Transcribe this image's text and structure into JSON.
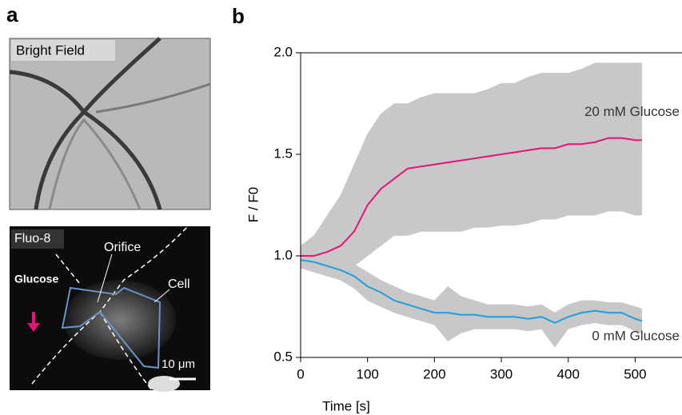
{
  "panel_a": {
    "label": "a",
    "bright_field_label": "Bright Field",
    "fluo_label": "Fluo-8",
    "orifice_label": "Orifice",
    "glucose_label": "Glucose",
    "cell_label": "Cell",
    "scale_label": "10 μm"
  },
  "chart_data": {
    "type": "line",
    "panel_label": "b",
    "xlabel": "Time [s]",
    "ylabel": "F / F0",
    "x": [
      0,
      20,
      40,
      60,
      80,
      100,
      120,
      140,
      160,
      180,
      200,
      220,
      240,
      260,
      280,
      300,
      320,
      340,
      360,
      380,
      400,
      420,
      440,
      460,
      480,
      500,
      510
    ],
    "xlim": [
      0,
      570
    ],
    "xticks": [
      0,
      100,
      200,
      300,
      400,
      500
    ],
    "ylim": [
      0.5,
      2.0
    ],
    "yticks": [
      {
        "value": 0.5,
        "label": "0.5"
      },
      {
        "value": 1.0,
        "label": "1.0"
      },
      {
        "value": 1.5,
        "label": "1.5"
      },
      {
        "value": 2.0,
        "label": "2.0"
      }
    ],
    "band_color": "#c8c8c8",
    "series": [
      {
        "name": "20 mM Glucose",
        "color": "#e4147a",
        "values": [
          1.0,
          1.0,
          1.02,
          1.05,
          1.12,
          1.25,
          1.33,
          1.38,
          1.43,
          1.44,
          1.45,
          1.46,
          1.47,
          1.48,
          1.49,
          1.5,
          1.51,
          1.52,
          1.53,
          1.53,
          1.55,
          1.55,
          1.56,
          1.58,
          1.58,
          1.57,
          1.57
        ],
        "upper": [
          1.05,
          1.1,
          1.2,
          1.3,
          1.45,
          1.6,
          1.7,
          1.75,
          1.75,
          1.78,
          1.8,
          1.8,
          1.8,
          1.8,
          1.82,
          1.85,
          1.85,
          1.88,
          1.9,
          1.9,
          1.9,
          1.92,
          1.95,
          1.95,
          1.95,
          1.95,
          1.95
        ],
        "lower": [
          0.95,
          0.95,
          0.95,
          0.93,
          0.95,
          1.0,
          1.05,
          1.1,
          1.1,
          1.12,
          1.12,
          1.12,
          1.12,
          1.14,
          1.14,
          1.15,
          1.15,
          1.16,
          1.18,
          1.18,
          1.2,
          1.2,
          1.2,
          1.22,
          1.22,
          1.2,
          1.2
        ]
      },
      {
        "name": "0 mM Glucose",
        "color": "#1ea0e0",
        "values": [
          0.98,
          0.97,
          0.95,
          0.93,
          0.9,
          0.85,
          0.82,
          0.78,
          0.76,
          0.74,
          0.72,
          0.72,
          0.71,
          0.71,
          0.7,
          0.7,
          0.7,
          0.69,
          0.7,
          0.67,
          0.7,
          0.72,
          0.73,
          0.72,
          0.72,
          0.69,
          0.68
        ],
        "upper": [
          1.02,
          1.02,
          1.0,
          0.98,
          0.96,
          0.92,
          0.88,
          0.85,
          0.82,
          0.8,
          0.78,
          0.85,
          0.8,
          0.78,
          0.76,
          0.76,
          0.76,
          0.75,
          0.76,
          0.72,
          0.76,
          0.78,
          0.78,
          0.77,
          0.77,
          0.75,
          0.74
        ],
        "lower": [
          0.94,
          0.92,
          0.9,
          0.88,
          0.84,
          0.78,
          0.75,
          0.72,
          0.7,
          0.68,
          0.66,
          0.58,
          0.62,
          0.64,
          0.64,
          0.64,
          0.64,
          0.63,
          0.64,
          0.55,
          0.64,
          0.66,
          0.67,
          0.66,
          0.66,
          0.63,
          0.62
        ]
      }
    ]
  }
}
